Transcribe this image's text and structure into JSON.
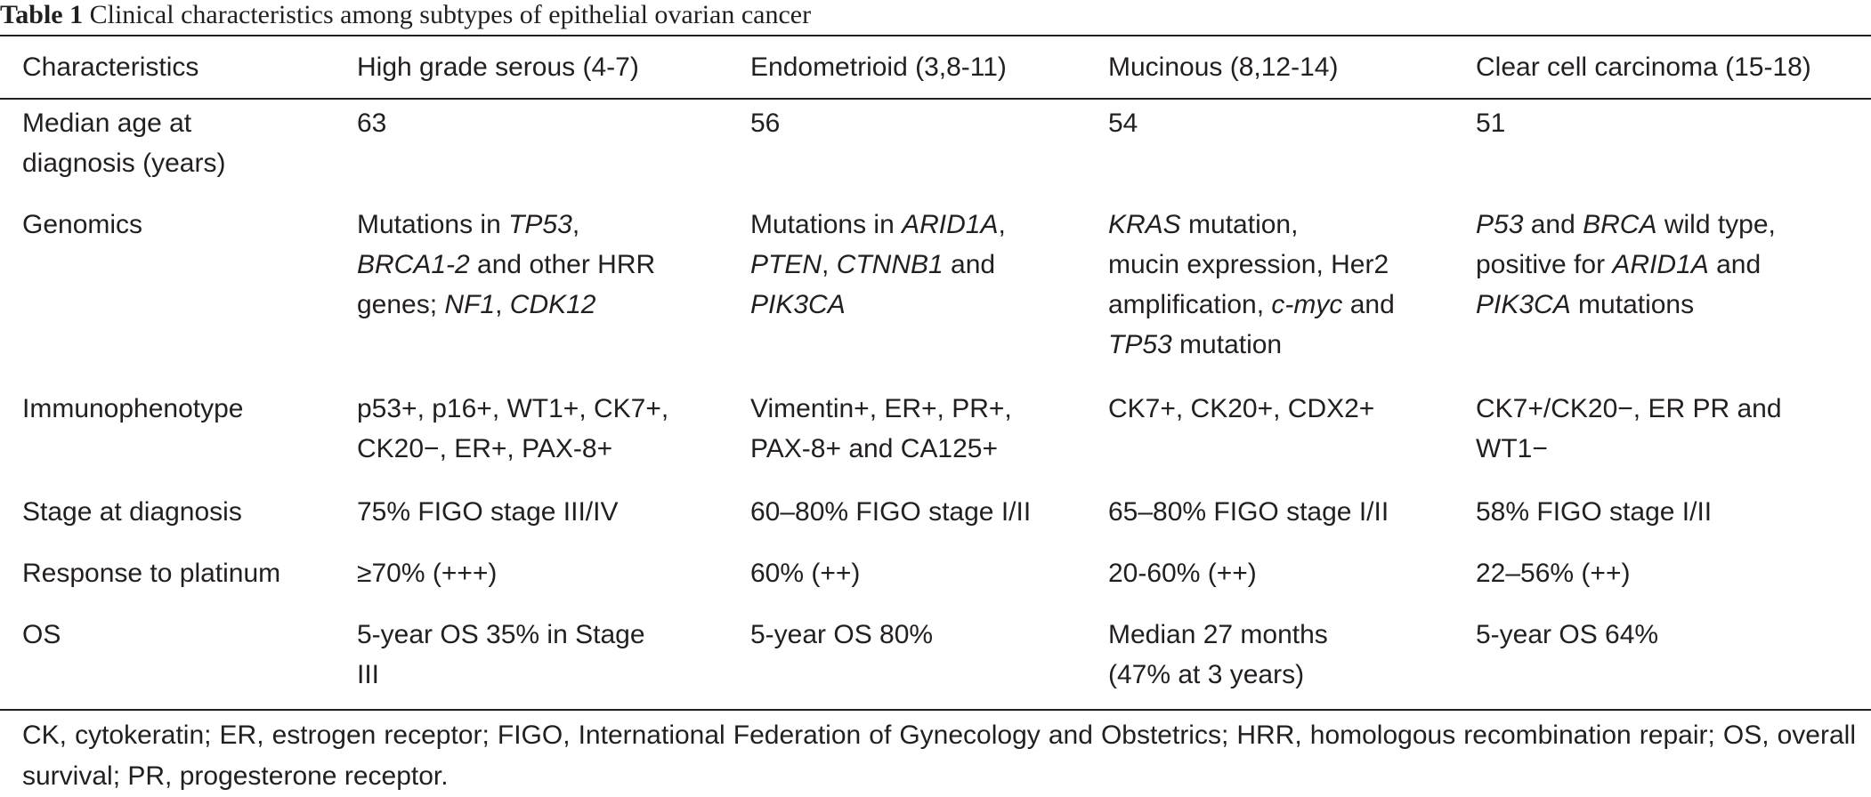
{
  "caption": {
    "label": "Table 1",
    "text": " Clinical characteristics among subtypes of epithelial ovarian cancer"
  },
  "table": {
    "headers": [
      "Characteristics",
      "High grade serous (4-7)",
      "Endometrioid (3,8-11)",
      "Mucinous (8,12-14)",
      "Clear cell carcinoma (15-18)"
    ],
    "rows": [
      {
        "height": 114,
        "cells": [
          [
            {
              "t": "Median age at"
            },
            {
              "br": true
            },
            {
              "t": "diagnosis (years)"
            }
          ],
          [
            {
              "t": "63"
            }
          ],
          [
            {
              "t": "56"
            }
          ],
          [
            {
              "t": "54"
            }
          ],
          [
            {
              "t": "51"
            }
          ]
        ]
      },
      {
        "height": 207,
        "cells": [
          [
            {
              "t": "Genomics"
            }
          ],
          [
            {
              "t": "Mutations in "
            },
            {
              "t": "TP53",
              "i": true
            },
            {
              "t": ","
            },
            {
              "br": true
            },
            {
              "t": "BRCA1-2",
              "i": true
            },
            {
              "t": " and other HRR"
            },
            {
              "br": true
            },
            {
              "t": "genes; "
            },
            {
              "t": "NF1",
              "i": true
            },
            {
              "t": ", "
            },
            {
              "t": "CDK12",
              "i": true
            }
          ],
          [
            {
              "t": "Mutations in "
            },
            {
              "t": "ARID1A",
              "i": true
            },
            {
              "t": ","
            },
            {
              "br": true
            },
            {
              "t": "PTEN",
              "i": true
            },
            {
              "t": ", "
            },
            {
              "t": "CTNNB1",
              "i": true
            },
            {
              "t": " and"
            },
            {
              "br": true
            },
            {
              "t": "PIK3CA",
              "i": true
            }
          ],
          [
            {
              "t": "KRAS",
              "i": true
            },
            {
              "t": " mutation,"
            },
            {
              "br": true
            },
            {
              "t": "mucin expression, Her2"
            },
            {
              "br": true
            },
            {
              "t": "amplification, "
            },
            {
              "t": "c-myc",
              "i": true
            },
            {
              "t": " and"
            },
            {
              "br": true
            },
            {
              "t": "TP53",
              "i": true
            },
            {
              "t": " mutation"
            }
          ],
          [
            {
              "t": "P53",
              "i": true
            },
            {
              "t": " and "
            },
            {
              "t": "BRCA",
              "i": true
            },
            {
              "t": " wild type,"
            },
            {
              "br": true
            },
            {
              "t": "positive for "
            },
            {
              "t": "ARID1A",
              "i": true
            },
            {
              "t": " and"
            },
            {
              "br": true
            },
            {
              "t": "PIK3CA",
              "i": true
            },
            {
              "t": " mutations"
            }
          ]
        ]
      },
      {
        "height": 116,
        "cells": [
          [
            {
              "t": "Immunophenotype"
            }
          ],
          [
            {
              "t": "p53+, p16+, WT1+, CK7+,"
            },
            {
              "br": true
            },
            {
              "t": "CK20−, ER+, PAX-8+"
            }
          ],
          [
            {
              "t": "Vimentin+, ER+, PR+,"
            },
            {
              "br": true
            },
            {
              "t": "PAX-8+ and CA125+"
            }
          ],
          [
            {
              "t": "CK7+, CK20+, CDX2+"
            }
          ],
          [
            {
              "t": "CK7+/CK20−, ER PR and"
            },
            {
              "br": true
            },
            {
              "t": "WT1−"
            }
          ]
        ]
      },
      {
        "height": 69,
        "cells": [
          [
            {
              "t": "Stage at diagnosis"
            }
          ],
          [
            {
              "t": "75% FIGO stage III/IV"
            }
          ],
          [
            {
              "t": "60–80% FIGO stage I/II"
            }
          ],
          [
            {
              "t": "65–80% FIGO stage I/II"
            }
          ],
          [
            {
              "t": "58% FIGO stage I/II"
            }
          ]
        ]
      },
      {
        "height": 69,
        "cells": [
          [
            {
              "t": "Response to platinum"
            }
          ],
          [
            {
              "t": "≥70% (+++)"
            }
          ],
          [
            {
              "t": "60% (++)"
            }
          ],
          [
            {
              "t": "20-60% (++)"
            }
          ],
          [
            {
              "t": "22–56% (++)"
            }
          ]
        ]
      },
      {
        "height": 86,
        "cells": [
          [
            {
              "t": "OS"
            }
          ],
          [
            {
              "t": "5-year OS 35% in Stage"
            },
            {
              "br": true
            },
            {
              "t": "III"
            }
          ],
          [
            {
              "t": "5-year OS 80%"
            }
          ],
          [
            {
              "t": "Median 27 months"
            },
            {
              "br": true
            },
            {
              "t": "(47% at 3 years)"
            }
          ],
          [
            {
              "t": "5-year OS 64%"
            }
          ]
        ]
      }
    ]
  },
  "footnote": "CK, cytokeratin; ER, estrogen receptor; FIGO, International Federation of Gynecology and Obstetrics; HRR, homologous recombination repair; OS, overall survival; PR, progesterone receptor."
}
